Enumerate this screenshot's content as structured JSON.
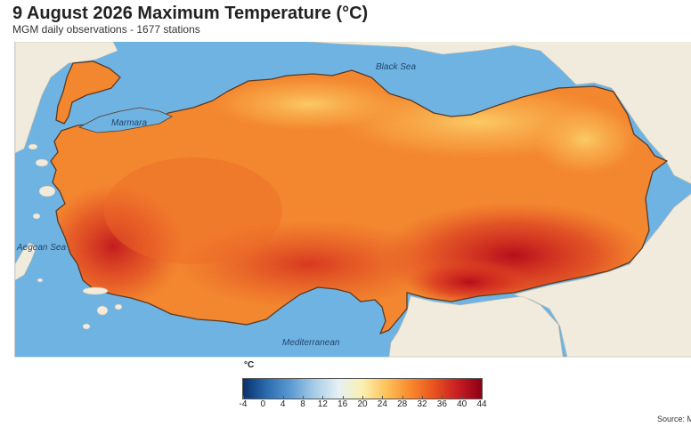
{
  "title": "9 August 2026 Maximum Temperature (°C)",
  "subtitle": "MGM daily observations - 1677 stations",
  "map": {
    "sea_labels": {
      "black_sea": "Black Sea",
      "marmara": "Marmara",
      "aegean": "Aegean Sea",
      "mediterranean": "Mediterranean"
    },
    "colors": {
      "sea": "#6fb3e3",
      "land_neighbor": "#f1ebdd",
      "border": "#5a3a24"
    }
  },
  "legend": {
    "unit": "°C",
    "ticks": [
      "-4",
      "0",
      "4",
      "8",
      "12",
      "16",
      "20",
      "24",
      "28",
      "32",
      "36",
      "40",
      "44"
    ],
    "range": [
      -4,
      44
    ],
    "colors": [
      "#08306b",
      "#2b6cb0",
      "#5c9bd1",
      "#a8cde8",
      "#e6f0f5",
      "#fbf0b0",
      "#fdc15a",
      "#f98a2d",
      "#e8521e",
      "#c81d22",
      "#8b0015"
    ]
  },
  "source": "Source: M"
}
